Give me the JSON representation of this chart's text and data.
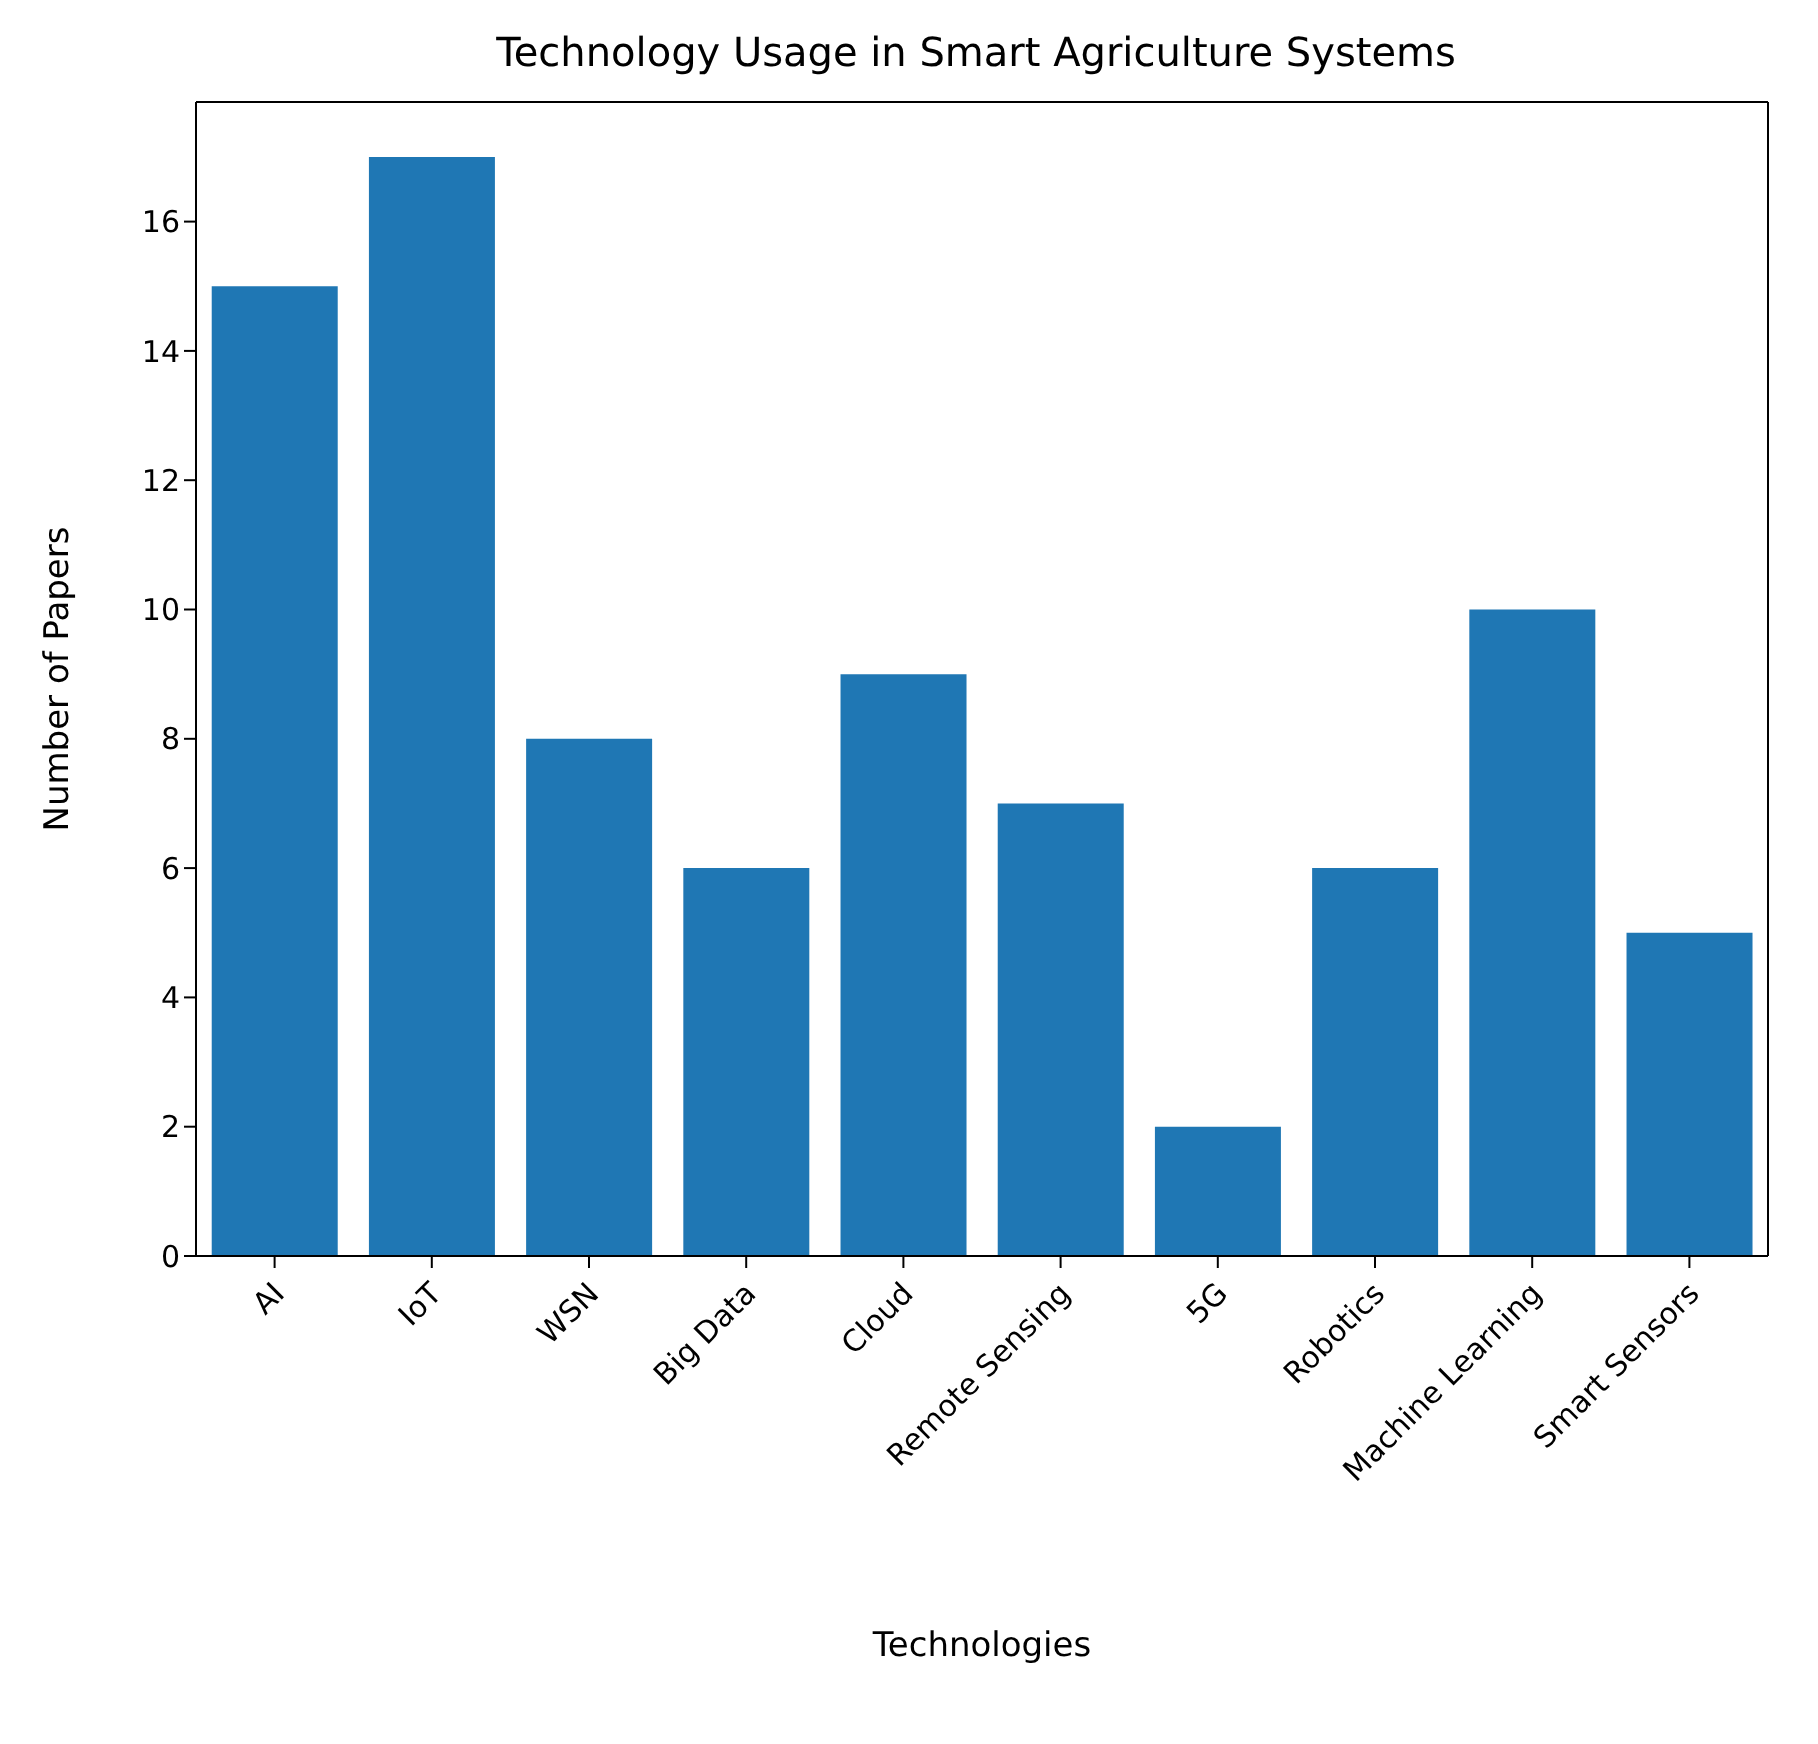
{
  "chart_data": {
    "type": "bar",
    "title": "Technology Usage in Smart Agriculture Systems",
    "xlabel": "Technologies",
    "ylabel": "Number of Papers",
    "categories": [
      "AI",
      "IoT",
      "WSN",
      "Big Data",
      "Cloud",
      "Remote Sensing",
      "5G",
      "Robotics",
      "Machine Learning",
      "Smart Sensors"
    ],
    "values": [
      15,
      17,
      8,
      6,
      9,
      7,
      2,
      6,
      10,
      5
    ],
    "color": "#1f77b4",
    "ylim": [
      0,
      17.85
    ],
    "yticks": [
      0,
      2,
      4,
      6,
      8,
      10,
      12,
      14,
      16
    ],
    "grid": false
  }
}
